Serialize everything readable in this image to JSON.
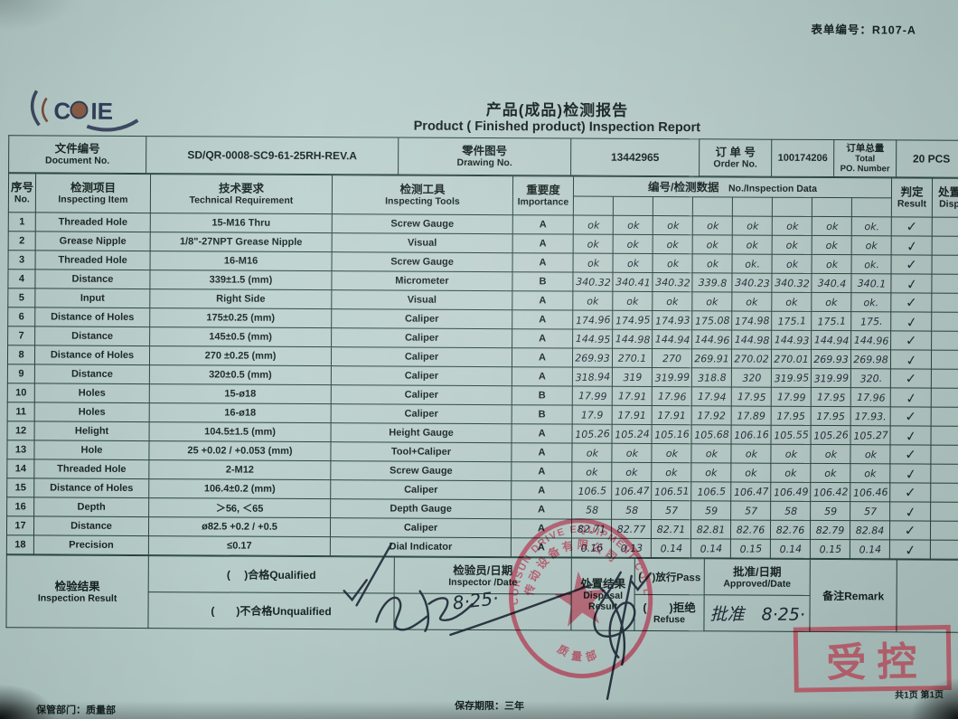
{
  "meta": {
    "form_no": "表单编号：R107-A",
    "page_note": "共1页 第1页",
    "keep_dept": "保管部门：质量部",
    "retention": "保存期限：三年"
  },
  "colors": {
    "paper": "#b6ccc9",
    "ink": "#15221f",
    "handwriting": "#1b2733",
    "seal_red": "#b8455c",
    "controlled_red": "#c25665"
  },
  "brand": {
    "logo_text": "COIE",
    "logo_c": "C",
    "logo_ie": "IE"
  },
  "title": {
    "zh": "产品(成品)检测报告",
    "en": "Product ( Finished product) Inspection Report"
  },
  "info": {
    "doc_label_zh": "文件编号",
    "doc_label_en": "Document No.",
    "doc_value": "SD/QR-0008-SC9-61-25RH-REV.A",
    "drawing_label_zh": "零件图号",
    "drawing_label_en": "Drawing No.",
    "drawing_value": "13442965",
    "order_label_zh": "订 单 号",
    "order_label_en": "Order  No.",
    "order_value": "100174206",
    "total_label_zh": "订单总量",
    "total_label_en1": "Total",
    "total_label_en2": "PO. Number",
    "total_value": "20 PCS"
  },
  "main_table": {
    "headers": {
      "no_zh": "序号",
      "no_en": "No.",
      "item_zh": "检测项目",
      "item_en": "Inspecting Item",
      "req_zh": "技术要求",
      "req_en": "Technical Requirement",
      "tool_zh": "检测工具",
      "tool_en": "Inspecting Tools",
      "imp_zh": "重要度",
      "imp_en": "Importance",
      "data_zh": "编号/检测数据",
      "data_en": "No./Inspection Data",
      "result_zh": "判定",
      "result_en": "Result",
      "disp_zh": "处置",
      "disp_en": "Disp"
    },
    "rows": [
      {
        "no": "1",
        "item": "Threaded Hole",
        "req": "15-M16 Thru",
        "tool": "Screw Gauge",
        "imp": "A",
        "data": [
          "ok",
          "ok",
          "ok",
          "ok",
          "ok",
          "ok",
          "ok",
          "ok."
        ],
        "result": "✓"
      },
      {
        "no": "2",
        "item": "Grease Nipple",
        "req": "1/8\"-27NPT Grease Nipple",
        "tool": "Visual",
        "imp": "A",
        "data": [
          "ok",
          "ok",
          "ok",
          "ok",
          "ok",
          "ok",
          "ok",
          "ok"
        ],
        "result": "✓"
      },
      {
        "no": "3",
        "item": "Threaded Hole",
        "req": "16-M16",
        "tool": "Screw Gauge",
        "imp": "A",
        "data": [
          "ok",
          "ok",
          "ok",
          "ok",
          "ok.",
          "ok",
          "ok",
          "ok."
        ],
        "result": "✓"
      },
      {
        "no": "4",
        "item": "Distance",
        "req": "339±1.5 (mm)",
        "tool": "Micrometer",
        "imp": "B",
        "data": [
          "340.32",
          "340.41",
          "340.32",
          "339.8",
          "340.23",
          "340.32",
          "340.4",
          "340.1"
        ],
        "result": "✓"
      },
      {
        "no": "5",
        "item": "Input",
        "req": "Right Side",
        "tool": "Visual",
        "imp": "A",
        "data": [
          "ok",
          "ok",
          "ok",
          "ok",
          "ok",
          "ok",
          "ok",
          "ok."
        ],
        "result": "✓"
      },
      {
        "no": "6",
        "item": "Distance of Holes",
        "req": "175±0.25 (mm)",
        "tool": "Caliper",
        "imp": "A",
        "data": [
          "174.96",
          "174.95",
          "174.93",
          "175.08",
          "174.98",
          "175.1",
          "175.1",
          "175."
        ],
        "result": "✓"
      },
      {
        "no": "7",
        "item": "Distance",
        "req": "145±0.5  (mm)",
        "tool": "Caliper",
        "imp": "A",
        "data": [
          "144.95",
          "144.98",
          "144.94",
          "144.96",
          "144.98",
          "144.93",
          "144.94",
          "144.96"
        ],
        "result": "✓"
      },
      {
        "no": "8",
        "item": "Distance of Holes",
        "req": "270 ±0.25 (mm)",
        "tool": "Caliper",
        "imp": "A",
        "data": [
          "269.93",
          "270.1",
          "270",
          "269.91",
          "270.02",
          "270.01",
          "269.93",
          "269.98"
        ],
        "result": "✓"
      },
      {
        "no": "9",
        "item": "Distance",
        "req": "320±0.5  (mm)",
        "tool": "Caliper",
        "imp": "A",
        "data": [
          "318.94",
          "319",
          "319.99",
          "318.8",
          "320",
          "319.95",
          "319.99",
          "320."
        ],
        "result": "✓"
      },
      {
        "no": "10",
        "item": "Holes",
        "req": "15-ø18",
        "tool": "Caliper",
        "imp": "B",
        "data": [
          "17.99",
          "17.91",
          "17.96",
          "17.94",
          "17.95",
          "17.99",
          "17.95",
          "17.96"
        ],
        "result": "✓"
      },
      {
        "no": "11",
        "item": "Holes",
        "req": "16-ø18",
        "tool": "Caliper",
        "imp": "B",
        "data": [
          "17.9",
          "17.91",
          "17.91",
          "17.92",
          "17.89",
          "17.95",
          "17.95",
          "17.93."
        ],
        "result": "✓"
      },
      {
        "no": "12",
        "item": "Helight",
        "req": "104.5±1.5 (mm)",
        "tool": "Height Gauge",
        "imp": "A",
        "data": [
          "105.26",
          "105.24",
          "105.16",
          "105.68",
          "106.16",
          "105.55",
          "105.26",
          "105.27"
        ],
        "result": "✓"
      },
      {
        "no": "13",
        "item": "Hole",
        "req": "25 +0.02 / +0.053 (mm)",
        "tool": "Tool+Caliper",
        "imp": "A",
        "data": [
          "ok",
          "ok",
          "ok",
          "ok",
          "ok",
          "ok",
          "ok",
          "ok"
        ],
        "result": "✓"
      },
      {
        "no": "14",
        "item": "Threaded Hole",
        "req": "2-M12",
        "tool": "Screw Gauge",
        "imp": "A",
        "data": [
          "ok",
          "ok",
          "ok",
          "ok",
          "ok",
          "ok",
          "ok",
          "ok"
        ],
        "result": "✓"
      },
      {
        "no": "15",
        "item": "Distance of Holes",
        "req": "106.4±0.2 (mm)",
        "tool": "Caliper",
        "imp": "A",
        "data": [
          "106.5",
          "106.47",
          "106.51",
          "106.5",
          "106.47",
          "106.49",
          "106.42",
          "106.46"
        ],
        "result": "✓"
      },
      {
        "no": "16",
        "item": "Depth",
        "req": "＞56, ＜65",
        "tool": "Depth Gauge",
        "imp": "A",
        "data": [
          "58",
          "58",
          "57",
          "59",
          "57",
          "58",
          "59",
          "57"
        ],
        "result": "✓"
      },
      {
        "no": "17",
        "item": "Distance",
        "req": "ø82.5 +0.2 / +0.5",
        "tool": "Caliper",
        "imp": "A",
        "data": [
          "82.71",
          "82.77",
          "82.71",
          "82.81",
          "82.76",
          "82.76",
          "82.79",
          "82.84"
        ],
        "result": "✓"
      },
      {
        "no": "18",
        "item": "Precision",
        "req": "≤0.17",
        "tool": "Dial Indicator",
        "imp": "A",
        "data": [
          "0.16",
          "0.13",
          "0.14",
          "0.14",
          "0.15",
          "0.14",
          "0.15",
          "0.14"
        ],
        "result": "✓"
      }
    ]
  },
  "footer_table": {
    "inspection_result_zh": "检验结果",
    "inspection_result_en": "Inspection Result",
    "qualified": "(　 )合格Qualified",
    "unqualified": "(　　)不合格Unqualified",
    "inspector_zh": "检验员/日期",
    "inspector_en": "Inspector /Date",
    "inspector_date": "8·25·",
    "disposal_zh": "处置结果",
    "disposal_en1": "Disposal",
    "disposal_en2": "Result",
    "pass": "(　)放行Pass",
    "refuse_zh": "(　　)拒绝",
    "refuse_en": "Refuse",
    "approved_zh": "批准/日期",
    "approved_en": "Approved/Date",
    "approved_hand": "批准　8·25·",
    "remark": "备注Remark"
  },
  "stamps": {
    "controlled": "受控",
    "seal_arc_en": "CORSUN DRIVE EQUIPMENT CO. LTD.",
    "seal_arc_zh": "传动设备有限公司",
    "seal_bottom_zh": "质量部"
  }
}
